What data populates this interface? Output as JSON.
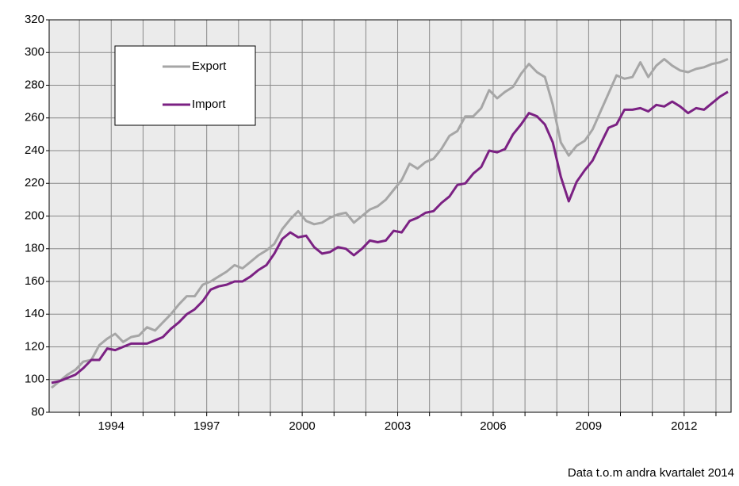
{
  "chart_data": {
    "type": "line",
    "categories": [
      null,
      null,
      null,
      null,
      null,
      null,
      null,
      "1994",
      null,
      null,
      null,
      null,
      null,
      null,
      null,
      null,
      null,
      null,
      null,
      "1997",
      null,
      null,
      null,
      null,
      null,
      null,
      null,
      null,
      null,
      null,
      null,
      "2000",
      null,
      null,
      null,
      null,
      null,
      null,
      null,
      null,
      null,
      null,
      null,
      "2003",
      null,
      null,
      null,
      null,
      null,
      null,
      null,
      null,
      null,
      null,
      null,
      "2006",
      null,
      null,
      null,
      null,
      null,
      null,
      null,
      null,
      null,
      null,
      null,
      "2009",
      null,
      null,
      null,
      null,
      null,
      null,
      null,
      null,
      null,
      null,
      null,
      "2012",
      null,
      null,
      null,
      null,
      null,
      null
    ],
    "series": [
      {
        "name": "Export",
        "color": "#a6a6a6",
        "values": [
          95,
          99,
          103,
          106,
          111,
          112,
          121,
          125,
          128,
          123,
          126,
          127,
          132,
          130,
          135,
          140,
          146,
          151,
          151,
          158,
          160,
          163,
          166,
          170,
          168,
          172,
          176,
          179,
          183,
          192,
          198,
          203,
          197,
          195,
          196,
          199,
          201,
          202,
          196,
          200,
          204,
          206,
          210,
          216,
          222,
          232,
          229,
          233,
          235,
          241,
          249,
          252,
          261,
          261,
          266,
          277,
          272,
          276,
          279,
          287,
          293,
          288,
          285,
          268,
          245,
          237,
          243,
          246,
          253,
          264,
          275,
          286,
          284,
          285,
          294,
          285,
          292,
          296,
          292,
          289,
          288,
          290,
          291,
          293,
          294,
          296
        ]
      },
      {
        "name": "Import",
        "color": "#7b2183",
        "values": [
          98,
          99,
          101,
          103,
          107,
          112,
          112,
          119,
          118,
          120,
          122,
          122,
          122,
          124,
          126,
          131,
          135,
          140,
          143,
          148,
          155,
          157,
          158,
          160,
          160,
          163,
          167,
          170,
          177,
          186,
          190,
          187,
          188,
          181,
          177,
          178,
          181,
          180,
          176,
          180,
          185,
          184,
          185,
          191,
          190,
          197,
          199,
          202,
          203,
          208,
          212,
          219,
          220,
          226,
          230,
          240,
          239,
          241,
          250,
          256,
          263,
          261,
          256,
          245,
          224,
          209,
          221,
          228,
          234,
          244,
          254,
          256,
          265,
          265,
          266,
          264,
          268,
          267,
          270,
          267,
          263,
          266,
          265,
          269,
          273,
          276
        ]
      }
    ],
    "ylim": [
      80,
      320
    ],
    "yticks": [
      80,
      100,
      120,
      140,
      160,
      180,
      200,
      220,
      240,
      260,
      280,
      300,
      320
    ],
    "grid": true,
    "legend": "upper left",
    "annotation": "Data t.o.m andra kvartalet 2014"
  }
}
